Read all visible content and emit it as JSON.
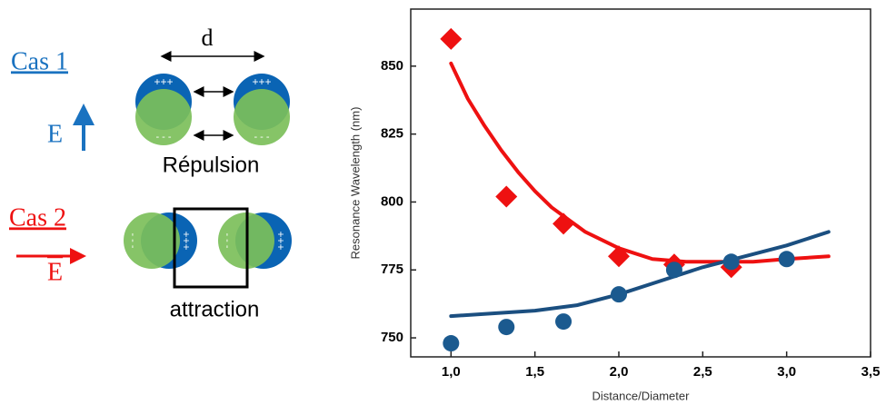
{
  "diagram": {
    "case1": {
      "label": "Cas 1",
      "field": "E",
      "distance": "d",
      "caption": "Répulsion"
    },
    "case2": {
      "label": "Cas 2",
      "field": "E",
      "caption": "attraction"
    },
    "charges": {
      "plus": "+++",
      "minus": "- - -"
    }
  },
  "chart_data": {
    "type": "scatter",
    "ylabel": "Resonance Wavelength  (nm)",
    "xlabel": "Distance/Diameter",
    "xlim": [
      0.76,
      3.5
    ],
    "ylim": [
      743,
      871
    ],
    "xticks": [
      {
        "value": 1.0,
        "label": "1,0"
      },
      {
        "value": 1.5,
        "label": "1,5"
      },
      {
        "value": 2.0,
        "label": "2,0"
      },
      {
        "value": 2.5,
        "label": "2,5"
      },
      {
        "value": 3.0,
        "label": "3,0"
      },
      {
        "value": 3.5,
        "label": "3,5"
      }
    ],
    "yticks": [
      750,
      775,
      800,
      825,
      850
    ],
    "series": [
      {
        "kind": "line",
        "color": "#ee1111",
        "x": [
          1.0,
          1.1,
          1.2,
          1.3,
          1.4,
          1.5,
          1.6,
          1.8,
          2.0,
          2.2,
          2.4,
          2.6,
          2.8,
          3.0,
          3.25
        ],
        "values": [
          851,
          838,
          828,
          819,
          811,
          804,
          798,
          789,
          783,
          779,
          778,
          778,
          778,
          779,
          780
        ]
      },
      {
        "kind": "line",
        "color": "#1b4f80",
        "x": [
          1.0,
          1.25,
          1.5,
          1.75,
          2.0,
          2.25,
          2.5,
          2.75,
          3.0,
          3.25
        ],
        "values": [
          758,
          759,
          760,
          762,
          766,
          771,
          776,
          780,
          784,
          789
        ]
      },
      {
        "kind": "marker",
        "marker": "diamond",
        "color": "#ee1111",
        "x": [
          1.0,
          1.33,
          1.67,
          2.0,
          2.33,
          2.67
        ],
        "values": [
          860,
          802,
          792,
          780,
          777,
          776
        ]
      },
      {
        "kind": "marker",
        "marker": "circle",
        "color": "#1b5a8f",
        "x": [
          1.0,
          1.33,
          1.67,
          2.0,
          2.33,
          2.67,
          3.0
        ],
        "values": [
          748,
          754,
          756,
          766,
          775,
          778,
          779
        ]
      }
    ]
  }
}
